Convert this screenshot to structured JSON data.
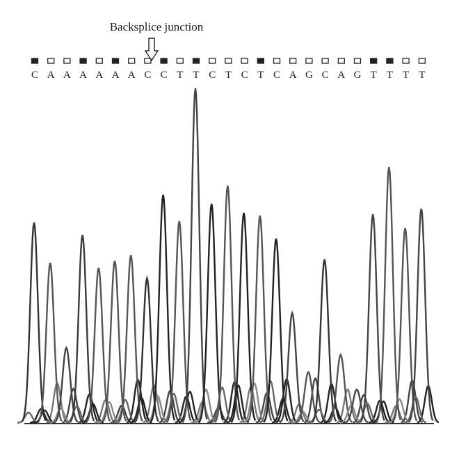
{
  "annotation": "Backsplice junction",
  "sequence": [
    "C",
    "A",
    "A",
    "A",
    "A",
    "A",
    "A",
    "C",
    "C",
    "T",
    "T",
    "C",
    "T",
    "C",
    "T",
    "C",
    "A",
    "G",
    "C",
    "A",
    "G",
    "T",
    "T",
    "T",
    "T"
  ]
}
